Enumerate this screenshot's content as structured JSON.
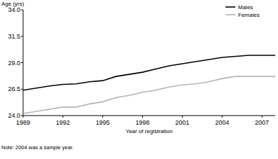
{
  "chart_data": {
    "type": "line",
    "y_label": "Age (yrs)",
    "x_label": "Year of registration",
    "note": "Note: 2004 was a sample year.",
    "x": [
      1989,
      1990,
      1991,
      1992,
      1993,
      1994,
      1995,
      1996,
      1997,
      1998,
      1999,
      2000,
      2001,
      2002,
      2003,
      2004,
      2005,
      2006,
      2007,
      2008
    ],
    "series": [
      {
        "name": "Males",
        "color": "#000000",
        "values": [
          26.4,
          26.6,
          26.8,
          26.95,
          27.0,
          27.2,
          27.3,
          27.7,
          27.9,
          28.1,
          28.4,
          28.7,
          28.9,
          29.1,
          29.3,
          29.5,
          29.6,
          29.7,
          29.7,
          29.7
        ]
      },
      {
        "name": "Females",
        "color": "#b4b4b4",
        "values": [
          24.2,
          24.4,
          24.6,
          24.8,
          24.8,
          25.1,
          25.3,
          25.7,
          25.9,
          26.2,
          26.4,
          26.7,
          26.9,
          27.0,
          27.2,
          27.5,
          27.7,
          27.7,
          27.7,
          27.7
        ]
      }
    ],
    "xlim": [
      1989,
      2008
    ],
    "xticks": [
      1989,
      1992,
      1995,
      1998,
      2001,
      2004,
      2007
    ],
    "ylim": [
      24,
      34
    ],
    "yticks": [
      {
        "value": 24,
        "label": "24.0"
      },
      26.5,
      {
        "value": 29,
        "label": "29.0"
      },
      31.5,
      {
        "value": 34,
        "label": "34.0"
      }
    ],
    "grid": false,
    "legend": "top-right"
  }
}
